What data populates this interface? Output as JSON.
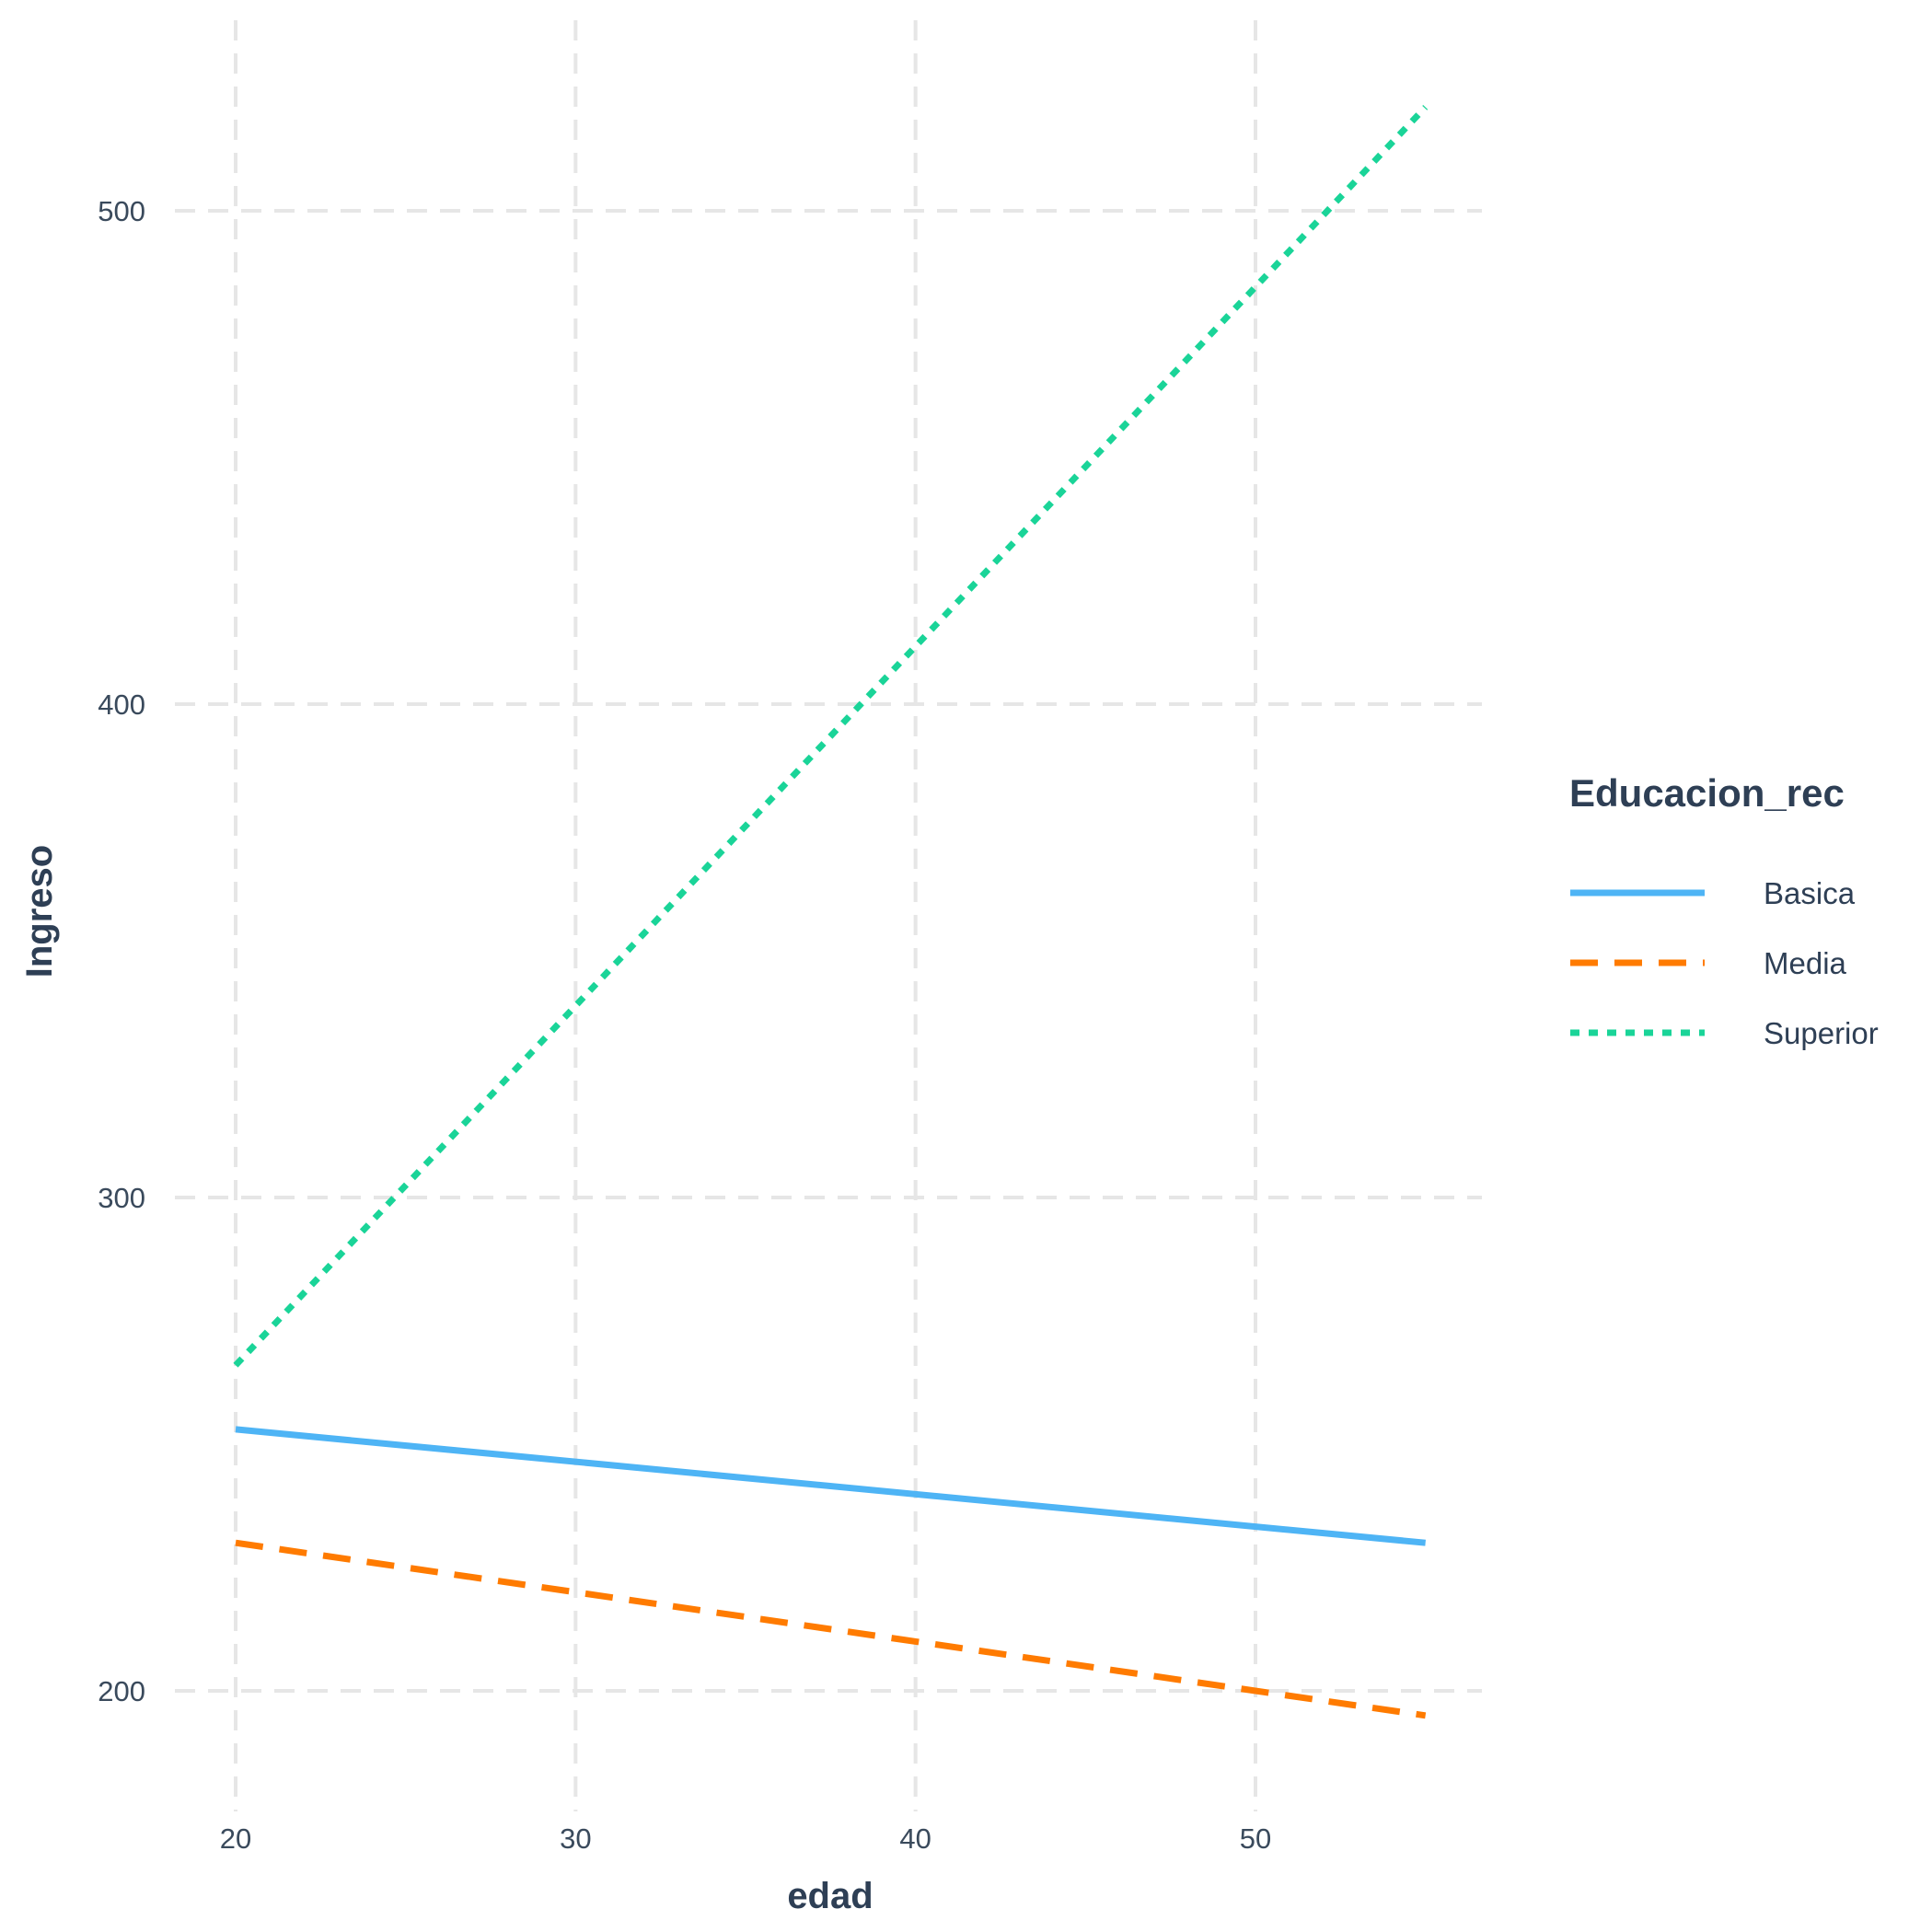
{
  "chart_data": {
    "type": "line",
    "xlabel": "edad",
    "ylabel": "Ingreso",
    "xlim": [
      18.2,
      56.7
    ],
    "ylim": [
      180.5,
      538
    ],
    "x_ticks": [
      20,
      30,
      40,
      50
    ],
    "y_ticks": [
      200,
      300,
      400,
      500
    ],
    "x_tick_labels": [
      "20",
      "30",
      "40",
      "50"
    ],
    "y_tick_labels": [
      "200",
      "300",
      "400",
      "500"
    ],
    "grid": true,
    "legend": {
      "title": "Educacion_rec",
      "position": "right"
    },
    "series": [
      {
        "name": "Basica",
        "color": "#4eb4f5",
        "linetype": "solid",
        "x": [
          20,
          55
        ],
        "y": [
          253,
          230
        ]
      },
      {
        "name": "Media",
        "color": "#ff7b00",
        "linetype": "dashed",
        "x": [
          20,
          55
        ],
        "y": [
          230,
          195
        ]
      },
      {
        "name": "Superior",
        "color": "#1ad498",
        "linetype": "dotted",
        "x": [
          20,
          55
        ],
        "y": [
          266,
          521
        ]
      }
    ]
  }
}
